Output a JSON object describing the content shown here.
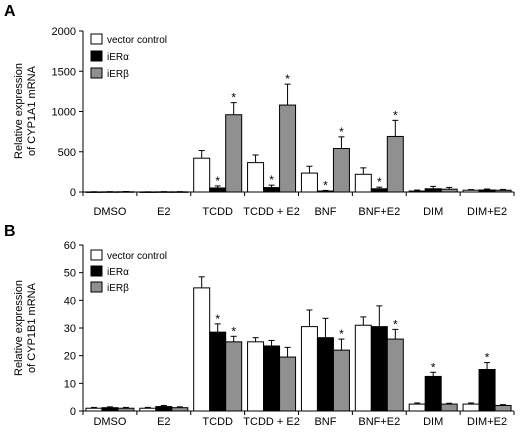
{
  "chart_data": [
    {
      "panel": "A",
      "type": "bar",
      "ylabel": "Relative expression of CYP1A1 mRNA",
      "ylim": [
        0,
        2000
      ],
      "yticks": [
        0,
        500,
        1000,
        1500,
        2000
      ],
      "categories": [
        "DMSO",
        "E2",
        "TCDD",
        "TCDD + E2",
        "BNF",
        "BNF+E2",
        "DIM",
        "DIM+E2"
      ],
      "legend_position": "top-left",
      "series": [
        {
          "name": "vector control",
          "color": "#ffffff",
          "values": [
            1,
            1,
            420,
            365,
            235,
            220,
            12,
            22
          ],
          "errors": [
            2,
            1,
            95,
            95,
            85,
            80,
            12,
            8
          ],
          "significant": [
            false,
            false,
            false,
            false,
            false,
            false,
            false,
            false
          ]
        },
        {
          "name": "iERα",
          "color": "#000000",
          "values": [
            2,
            2,
            50,
            55,
            12,
            40,
            40,
            25
          ],
          "errors": [
            2,
            2,
            25,
            30,
            8,
            20,
            30,
            12
          ],
          "significant": [
            false,
            false,
            true,
            true,
            true,
            true,
            false,
            false
          ]
        },
        {
          "name": "iERβ",
          "color": "#909090",
          "values": [
            3,
            2,
            960,
            1080,
            540,
            690,
            35,
            22
          ],
          "errors": [
            3,
            2,
            150,
            260,
            145,
            200,
            22,
            10
          ],
          "significant": [
            false,
            false,
            true,
            true,
            true,
            true,
            false,
            false
          ]
        }
      ]
    },
    {
      "panel": "B",
      "type": "bar",
      "ylabel": "Relative expression of CYP1B1 mRNA",
      "ylim": [
        0,
        60
      ],
      "yticks": [
        0,
        10,
        20,
        30,
        40,
        50,
        60
      ],
      "categories": [
        "DMSO",
        "E2",
        "TCDD",
        "TCDD + E2",
        "BNF",
        "BNF+E2",
        "DIM",
        "DIM+E2"
      ],
      "legend_position": "top-left",
      "series": [
        {
          "name": "vector control",
          "color": "#ffffff",
          "values": [
            1,
            1,
            44.5,
            25,
            30.5,
            31,
            2.5,
            2.5
          ],
          "errors": [
            0.3,
            0.3,
            4,
            1.5,
            6,
            3,
            0.4,
            0.4
          ],
          "significant": [
            false,
            false,
            false,
            false,
            false,
            false,
            false,
            false
          ]
        },
        {
          "name": "iERα",
          "color": "#000000",
          "values": [
            1.2,
            1.6,
            28.5,
            23.5,
            26.5,
            30.5,
            12.5,
            15
          ],
          "errors": [
            0.3,
            0.4,
            3,
            2,
            7,
            7.5,
            1.5,
            2.5
          ],
          "significant": [
            false,
            false,
            true,
            false,
            false,
            false,
            true,
            true
          ]
        },
        {
          "name": "iERβ",
          "color": "#909090",
          "values": [
            1,
            1.2,
            25,
            19.5,
            22,
            26,
            2.5,
            2
          ],
          "errors": [
            0.3,
            0.3,
            2,
            3.5,
            4,
            3.5,
            0.3,
            0.3
          ],
          "significant": [
            false,
            false,
            true,
            false,
            true,
            true,
            false,
            false
          ]
        }
      ]
    }
  ]
}
